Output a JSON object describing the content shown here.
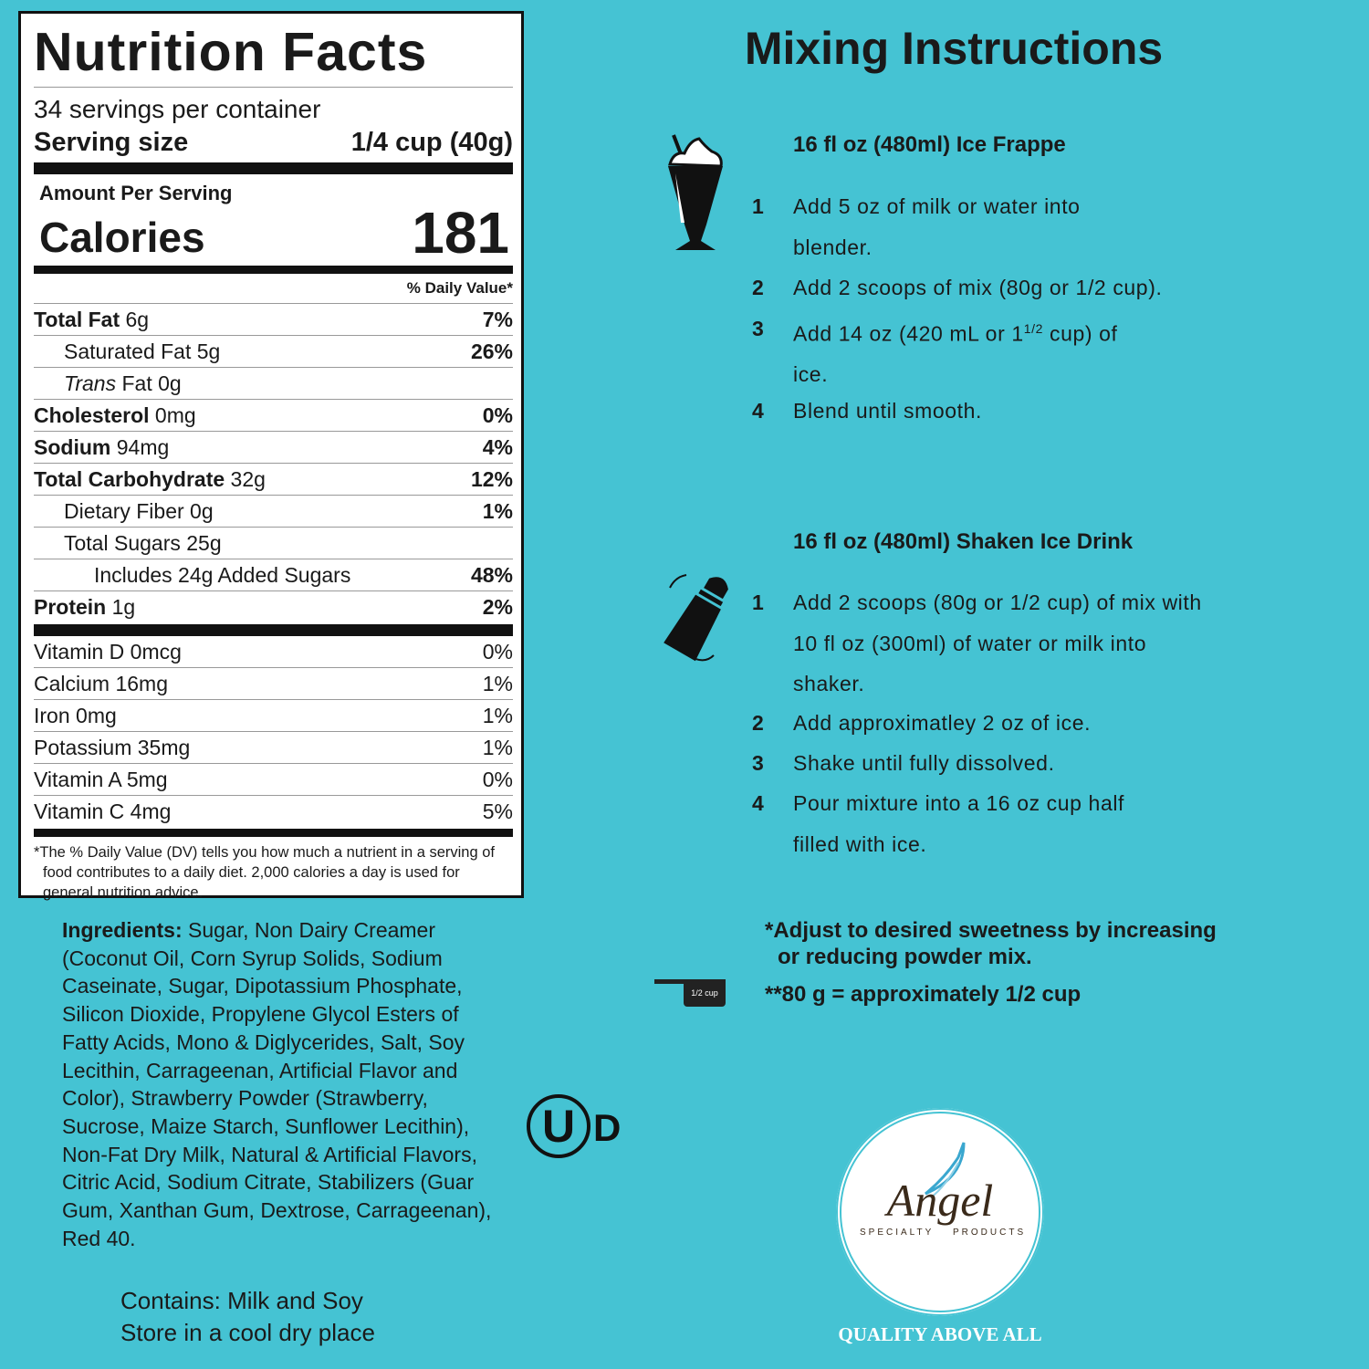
{
  "nutrition": {
    "title": "Nutrition Facts",
    "servings": "34 servings per container",
    "serving_size_label": "Serving size",
    "serving_size_value": "1/4 cup (40g)",
    "amount_per_serving": "Amount Per Serving",
    "calories_label": "Calories",
    "calories_value": "181",
    "dv_header": "% Daily Value*",
    "nutrients": [
      {
        "name": "Total Fat",
        "amount": "6g",
        "dv": "7%"
      },
      {
        "name": "Saturated Fat",
        "amount": "5g",
        "dv": "26%"
      },
      {
        "name": "Trans",
        "amount": "Fat 0g",
        "dv": ""
      },
      {
        "name": "Cholesterol",
        "amount": "0mg",
        "dv": "0%"
      },
      {
        "name": "Sodium",
        "amount": "94mg",
        "dv": "4%"
      },
      {
        "name": "Total Carbohydrate",
        "amount": "32g",
        "dv": "12%"
      },
      {
        "name": "Dietary Fiber",
        "amount": "0g",
        "dv": "1%"
      },
      {
        "name": "Total Sugars",
        "amount": "25g",
        "dv": ""
      },
      {
        "name": "Includes 24g Added Sugars",
        "amount": "",
        "dv": "48%"
      },
      {
        "name": "Protein",
        "amount": "1g",
        "dv": "2%"
      }
    ],
    "vitamins": [
      {
        "name": "Vitamin D 0mcg",
        "dv": "0%"
      },
      {
        "name": "Calcium 16mg",
        "dv": "1%"
      },
      {
        "name": "Iron 0mg",
        "dv": "1%"
      },
      {
        "name": "Potassium 35mg",
        "dv": "1%"
      },
      {
        "name": "Vitamin A 5mg",
        "dv": "0%"
      },
      {
        "name": "Vitamin C 4mg",
        "dv": "5%"
      }
    ],
    "footnote": "*The % Daily Value (DV) tells you how much a nutrient in a serving of food contributes to a daily diet. 2,000 calories a day is used for general nutrition advice."
  },
  "ingredients": {
    "label": "Ingredients:",
    "text": "Sugar, Non Dairy Creamer (Coconut Oil, Corn Syrup Solids, Sodium Caseinate, Sugar, Dipotassium Phosphate, Silicon Dioxide, Propylene Glycol Esters of Fatty Acids, Mono & Diglycerides, Salt, Soy Lecithin, Carrageenan, Artificial Flavor and Color), Strawberry Powder (Strawberry, Sucrose, Maize Starch, Sunflower Lecithin), Non-Fat Dry Milk, Natural & Artificial Flavors, Citric Acid, Sodium Citrate, Stabilizers (Guar Gum, Xanthan Gum, Dextrose, Carrageenan), Red 40."
  },
  "contains": "Contains: Milk and Soy",
  "storage": "Store in a cool  dry place",
  "kosher_symbol": {
    "letters": "UD"
  },
  "mixing": {
    "title": "Mixing Instructions",
    "frappe": {
      "heading": "16 fl oz (480ml) Ice Frappe",
      "icon": "milkshake-icon",
      "steps": [
        {
          "n": "1",
          "text": "Add 5 oz of milk or water into blender."
        },
        {
          "n": "2",
          "text": "Add 2 scoops of mix (80g or 1/2 cup)."
        },
        {
          "n": "3",
          "text_a": "Add 14 oz (420 mL or 1",
          "sup": "1/2",
          "text_b": " cup) of ice."
        },
        {
          "n": "4",
          "text": "Blend until smooth."
        }
      ]
    },
    "shaken": {
      "heading": "16 fl oz (480ml) Shaken Ice Drink",
      "icon": "shaker-icon",
      "steps": [
        {
          "n": "1",
          "text": "Add 2 scoops (80g or 1/2 cup) of mix with 10 fl oz (300ml) of water or milk into shaker."
        },
        {
          "n": "2",
          "text": "Add approximatley 2 oz of ice."
        },
        {
          "n": "3",
          "text": "Shake until fully dissolved."
        },
        {
          "n": "4",
          "text": "Pour mixture into a 16 oz cup half filled with ice."
        }
      ]
    },
    "note_1": "*Adjust to desired sweetness by increasing or reducing powder mix.",
    "note_2": "**80 g = approximately 1/2 cup",
    "scoop_label": "1/2 cup"
  },
  "logo": {
    "script": "Angel",
    "left": "SPECIALTY",
    "right": "PRODUCTS"
  },
  "tagline": "QUALITY ABOVE ALL",
  "colors": {
    "background": "#45c3d3",
    "ink": "#1a1a1a",
    "logo_wing": "#3aa7cf",
    "logo_text": "#3a2a1a"
  }
}
